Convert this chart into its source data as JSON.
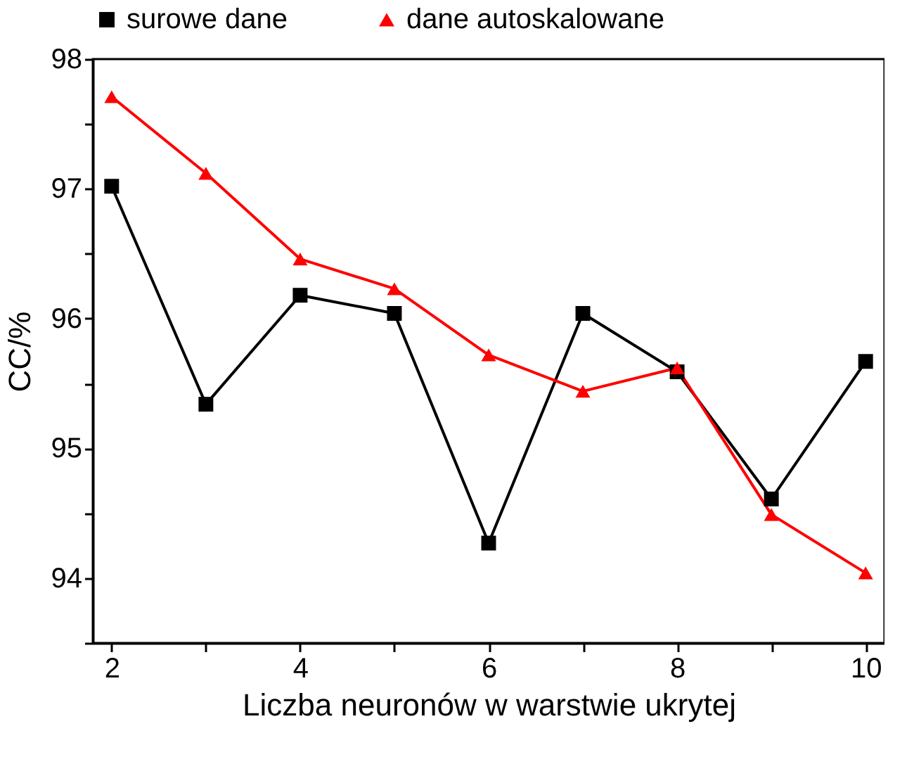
{
  "chart_data": {
    "type": "line",
    "xlabel": "Liczba neuronów w warstwie ukrytej",
    "ylabel": "CC/%",
    "x": [
      2,
      3,
      4,
      5,
      6,
      7,
      8,
      9,
      10
    ],
    "series": [
      {
        "name": "surowe dane",
        "color": "#000000",
        "marker": "square",
        "values": [
          97.02,
          95.34,
          96.18,
          96.04,
          94.27,
          96.04,
          95.59,
          94.61,
          95.67
        ]
      },
      {
        "name": "dane autoskalowane",
        "color": "#ff0000",
        "marker": "triangle",
        "values": [
          97.71,
          97.12,
          96.46,
          96.23,
          95.72,
          95.44,
          95.62,
          94.49,
          94.04
        ]
      }
    ],
    "xlim": [
      1.8,
      10.2
    ],
    "xticks": [
      2,
      {
        "value": 3,
        "label": null
      },
      4,
      {
        "value": 5,
        "label": null
      },
      6,
      {
        "value": 7,
        "label": null
      },
      8,
      {
        "value": 9,
        "label": null
      },
      10
    ],
    "ylim": [
      93.5,
      98
    ],
    "yticks": [
      {
        "value": 93.5,
        "label": null
      },
      94,
      {
        "value": 94.5,
        "label": null
      },
      95,
      {
        "value": 95.5,
        "label": null
      },
      96,
      {
        "value": 96.5,
        "label": null
      },
      97,
      {
        "value": 97.5,
        "label": null
      },
      98
    ],
    "grid": false,
    "legend": "top",
    "line_style": "solid"
  }
}
